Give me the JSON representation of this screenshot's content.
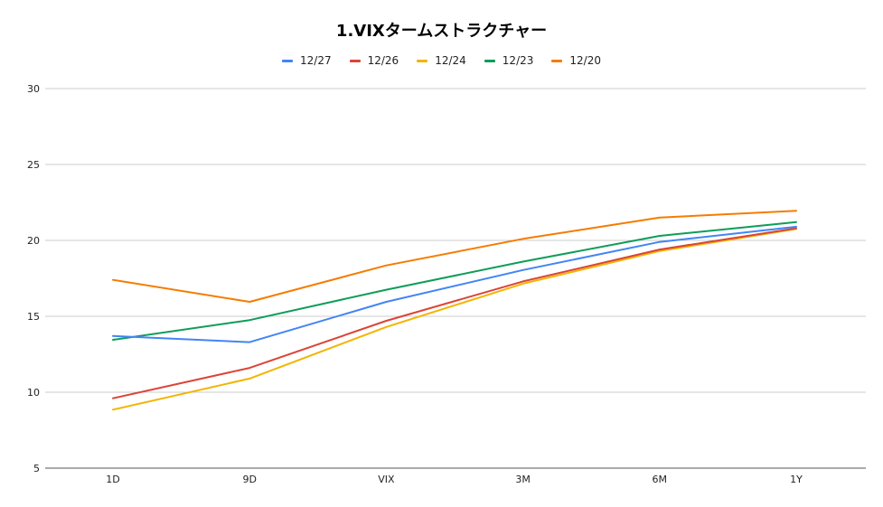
{
  "chart_data": {
    "type": "line",
    "title": "1.VIXタームストラクチャー",
    "xlabel": "",
    "ylabel": "",
    "categories": [
      "1D",
      "9D",
      "VIX",
      "3M",
      "6M",
      "1Y"
    ],
    "ylim": [
      5,
      30
    ],
    "yticks": [
      5,
      10,
      15,
      20,
      25,
      30
    ],
    "grid": true,
    "legend": "top",
    "series": [
      {
        "name": "12/27",
        "color": "#4285F4",
        "values": [
          13.7,
          13.3,
          15.95,
          18.05,
          19.9,
          20.9
        ]
      },
      {
        "name": "12/26",
        "color": "#DB4437",
        "values": [
          9.6,
          11.6,
          14.7,
          17.3,
          19.4,
          20.8
        ]
      },
      {
        "name": "12/24",
        "color": "#F4B400",
        "values": [
          8.85,
          10.9,
          14.3,
          17.15,
          19.3,
          20.75
        ]
      },
      {
        "name": "12/23",
        "color": "#0F9D58",
        "values": [
          13.45,
          14.75,
          16.75,
          18.6,
          20.3,
          21.2
        ]
      },
      {
        "name": "12/20",
        "color": "#F57C00",
        "values": [
          17.4,
          15.95,
          18.35,
          20.1,
          21.5,
          21.95
        ]
      }
    ]
  }
}
